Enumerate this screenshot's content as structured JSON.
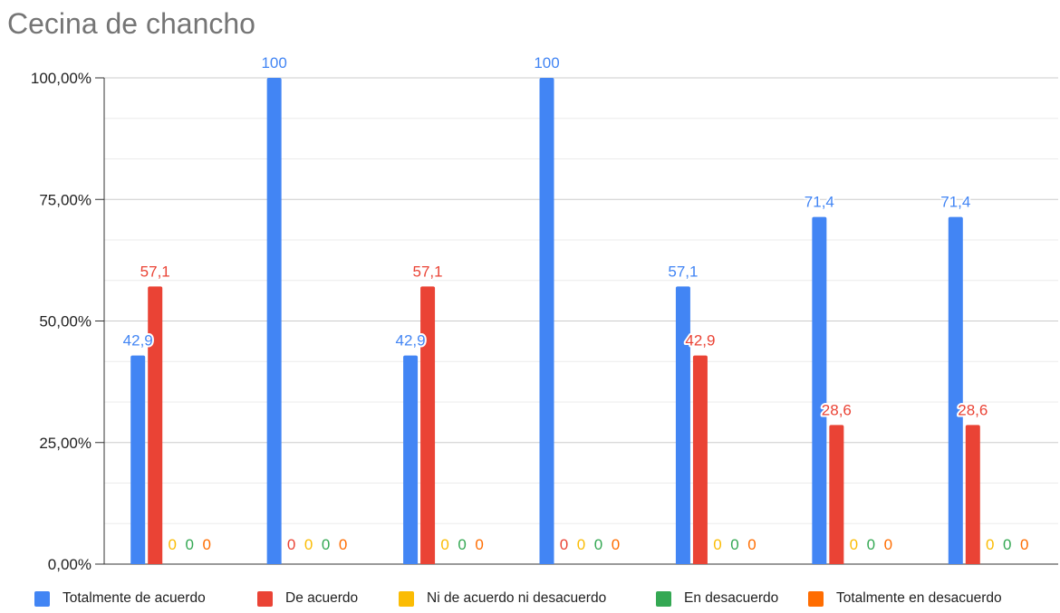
{
  "chart_data": {
    "type": "bar",
    "title": "Cecina de chancho",
    "xlabel": "",
    "ylabel": "",
    "ylim": [
      0,
      100
    ],
    "yticks": [
      0,
      25,
      50,
      75,
      100
    ],
    "ytick_labels": [
      "0,00%",
      "25,00%",
      "50,00%",
      "75,00%",
      "100,00%"
    ],
    "grid": true,
    "legend_position": "bottom",
    "categories": [
      "",
      "",
      "",
      "",
      "",
      "",
      ""
    ],
    "series": [
      {
        "name": "Totalmente de acuerdo",
        "color": "#4285f4",
        "values": [
          42.9,
          100,
          42.9,
          100,
          57.1,
          71.4,
          71.4
        ],
        "labels": [
          "42,9",
          "100",
          "42,9",
          "100",
          "57,1",
          "71,4",
          "71,4"
        ]
      },
      {
        "name": "De acuerdo",
        "color": "#ea4335",
        "values": [
          57.1,
          0,
          57.1,
          0,
          42.9,
          28.6,
          28.6
        ],
        "labels": [
          "57,1",
          "0",
          "57,1",
          "0",
          "42,9",
          "28,6",
          "28,6"
        ]
      },
      {
        "name": "Ni de acuerdo ni desacuerdo",
        "color": "#fbbc04",
        "values": [
          0,
          0,
          0,
          0,
          0,
          0,
          0
        ],
        "labels": [
          "0",
          "0",
          "0",
          "0",
          "0",
          "0",
          "0"
        ]
      },
      {
        "name": "En desacuerdo",
        "color": "#34a853",
        "values": [
          0,
          0,
          0,
          0,
          0,
          0,
          0
        ],
        "labels": [
          "0",
          "0",
          "0",
          "0",
          "0",
          "0",
          "0"
        ]
      },
      {
        "name": "Totalmente en desacuerdo",
        "color": "#ff6d01",
        "values": [
          0,
          0,
          0,
          0,
          0,
          0,
          0
        ],
        "labels": [
          "0",
          "0",
          "0",
          "0",
          "0",
          "0",
          "0"
        ]
      }
    ]
  }
}
